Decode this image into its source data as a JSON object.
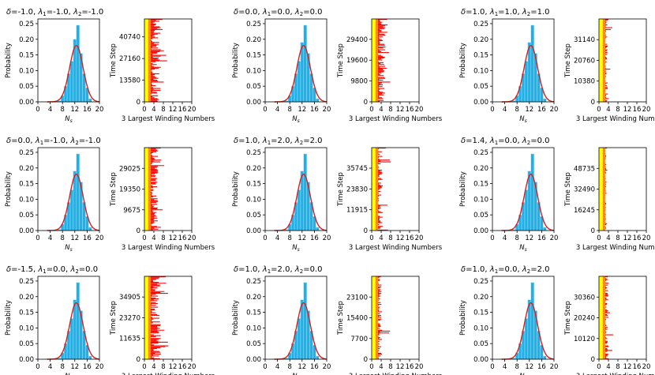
{
  "figure": {
    "hist_ylabel": "Probability",
    "hist_xlabel": "N_s",
    "hist_xticks": [
      0,
      4,
      8,
      12,
      16,
      20
    ],
    "hist_xlim": [
      0,
      20
    ],
    "hist_yticks": [
      0.0,
      0.05,
      0.1,
      0.15,
      0.2,
      0.25
    ],
    "hist_ylim": [
      0,
      0.265
    ],
    "wind_ylabel": "Time Step",
    "wind_xlabel": "3 Largest Winding Numbers",
    "wind_xticks": [
      0,
      4,
      8,
      12,
      16,
      20
    ],
    "wind_xlim": [
      0,
      20
    ],
    "colors": {
      "bars": "#1fb2ea",
      "bars_edge": "#9fdcf4",
      "curve": "#d62020",
      "yellow": "#ffff00",
      "orange": "#ff8c00",
      "red": "#ff0000"
    }
  },
  "chart_data": [
    {
      "type": "bar",
      "panel": "histogram",
      "title": "δ = -1.0, λ1 = -1.0, λ2 = -1.0",
      "title_parts": {
        "delta": "-1.0",
        "lambda1": "-1.0",
        "lambda2": "-1.0"
      },
      "x": [
        7,
        8,
        9,
        10,
        11,
        12,
        13,
        14,
        15,
        16,
        17
      ],
      "values": [
        0.003,
        0.02,
        0.05,
        0.09,
        0.13,
        0.2,
        0.245,
        0.155,
        0.09,
        0.045,
        0.01
      ],
      "fit_curve": {
        "mean": 12.5,
        "sigma": 2.2,
        "peak": 0.18
      },
      "xlabel": "N_s",
      "ylabel": "Probability",
      "winding": {
        "yticks": [
          0,
          13580,
          27160,
          40740
        ],
        "ymax": 52000,
        "max_reach": 12,
        "spread": "wide"
      }
    },
    {
      "type": "bar",
      "panel": "histogram",
      "title": "δ = 0.0, λ1 = 0.0, λ2 = 0.0",
      "title_parts": {
        "delta": "0.0",
        "lambda1": "0.0",
        "lambda2": "0.0"
      },
      "x": [
        7,
        8,
        9,
        10,
        11,
        12,
        13,
        14,
        15,
        16,
        17
      ],
      "values": [
        0.003,
        0.02,
        0.05,
        0.09,
        0.13,
        0.19,
        0.245,
        0.155,
        0.09,
        0.045,
        0.01
      ],
      "fit_curve": {
        "mean": 12.5,
        "sigma": 2.2,
        "peak": 0.18
      },
      "xlabel": "N_s",
      "ylabel": "Probability",
      "winding": {
        "yticks": [
          0,
          9800,
          19600,
          29400
        ],
        "ymax": 39000,
        "max_reach": 10,
        "spread": "wide"
      }
    },
    {
      "type": "bar",
      "panel": "histogram",
      "title": "δ = 1.0, λ1 = 1.0, λ2 = 1.0",
      "title_parts": {
        "delta": "1.0",
        "lambda1": "1.0",
        "lambda2": "1.0"
      },
      "x": [
        7,
        8,
        9,
        10,
        11,
        12,
        13,
        14,
        15,
        16,
        17
      ],
      "values": [
        0.003,
        0.02,
        0.05,
        0.09,
        0.13,
        0.19,
        0.245,
        0.155,
        0.09,
        0.045,
        0.01
      ],
      "fit_curve": {
        "mean": 12.5,
        "sigma": 2.2,
        "peak": 0.18
      },
      "xlabel": "N_s",
      "ylabel": "Probability",
      "winding": {
        "yticks": [
          0,
          10380,
          20760,
          31140
        ],
        "ymax": 41500,
        "max_reach": 6,
        "spread": "narrow"
      }
    },
    {
      "type": "bar",
      "panel": "histogram",
      "title": "δ = 0.0, λ1 = -1.0, λ2 = -1.0",
      "title_parts": {
        "delta": "0.0",
        "lambda1": "-1.0",
        "lambda2": "-1.0"
      },
      "x": [
        7,
        8,
        9,
        10,
        11,
        12,
        13,
        14,
        15,
        16,
        17
      ],
      "values": [
        0.003,
        0.02,
        0.05,
        0.09,
        0.13,
        0.19,
        0.245,
        0.155,
        0.09,
        0.045,
        0.01
      ],
      "fit_curve": {
        "mean": 12.5,
        "sigma": 2.2,
        "peak": 0.18
      },
      "xlabel": "N_s",
      "ylabel": "Probability",
      "winding": {
        "yticks": [
          0,
          9675,
          19350,
          29025
        ],
        "ymax": 38700,
        "max_reach": 10,
        "spread": "wide"
      }
    },
    {
      "type": "bar",
      "panel": "histogram",
      "title": "δ = 1.0, λ1 = 2.0, λ2 = 2.0",
      "title_parts": {
        "delta": "1.0",
        "lambda1": "2.0",
        "lambda2": "2.0"
      },
      "x": [
        7,
        8,
        9,
        10,
        11,
        12,
        13,
        14,
        15,
        16,
        17
      ],
      "values": [
        0.003,
        0.02,
        0.05,
        0.09,
        0.13,
        0.19,
        0.245,
        0.155,
        0.09,
        0.045,
        0.01
      ],
      "fit_curve": {
        "mean": 12.5,
        "sigma": 2.2,
        "peak": 0.18
      },
      "xlabel": "N_s",
      "ylabel": "Probability",
      "winding": {
        "yticks": [
          0,
          11915,
          23830,
          35745
        ],
        "ymax": 47500,
        "max_reach": 9,
        "spread": "narrow"
      }
    },
    {
      "type": "bar",
      "panel": "histogram",
      "title": "δ = 1.4, λ1 = 0.0, λ2 = 0.0",
      "title_parts": {
        "delta": "1.4",
        "lambda1": "0.0",
        "lambda2": "0.0"
      },
      "x": [
        7,
        8,
        9,
        10,
        11,
        12,
        13,
        14,
        15,
        16,
        17
      ],
      "values": [
        0.003,
        0.02,
        0.05,
        0.09,
        0.13,
        0.19,
        0.245,
        0.155,
        0.09,
        0.045,
        0.01
      ],
      "fit_curve": {
        "mean": 12.5,
        "sigma": 2.2,
        "peak": 0.18
      },
      "xlabel": "N_s",
      "ylabel": "Probability",
      "winding": {
        "yticks": [
          0,
          16245,
          32490,
          48735
        ],
        "ymax": 65000,
        "max_reach": 4,
        "spread": "narrow"
      }
    },
    {
      "type": "bar",
      "panel": "histogram",
      "title": "δ = -1.5, λ1 = 0.0, λ2 = 0.0",
      "title_parts": {
        "delta": "-1.5",
        "lambda1": "0.0",
        "lambda2": "0.0"
      },
      "x": [
        7,
        8,
        9,
        10,
        11,
        12,
        13,
        14,
        15,
        16,
        17
      ],
      "values": [
        0.003,
        0.02,
        0.05,
        0.09,
        0.13,
        0.19,
        0.245,
        0.155,
        0.09,
        0.045,
        0.01
      ],
      "fit_curve": {
        "mean": 12.5,
        "sigma": 2.2,
        "peak": 0.18
      },
      "xlabel": "N_s",
      "ylabel": "Probability",
      "winding": {
        "yticks": [
          0,
          11635,
          23270,
          34905
        ],
        "ymax": 46500,
        "max_reach": 12,
        "spread": "wide"
      }
    },
    {
      "type": "bar",
      "panel": "histogram",
      "title": "δ = 1.0, λ1 = 2.0, λ2 = 0.0",
      "title_parts": {
        "delta": "1.0",
        "lambda1": "2.0",
        "lambda2": "0.0"
      },
      "x": [
        7,
        8,
        9,
        10,
        11,
        12,
        13,
        14,
        15,
        16,
        17
      ],
      "values": [
        0.003,
        0.02,
        0.05,
        0.09,
        0.13,
        0.19,
        0.245,
        0.155,
        0.09,
        0.045,
        0.01
      ],
      "fit_curve": {
        "mean": 12.5,
        "sigma": 2.2,
        "peak": 0.18
      },
      "xlabel": "N_s",
      "ylabel": "Probability",
      "winding": {
        "yticks": [
          0,
          7700,
          15400,
          23100
        ],
        "ymax": 30800,
        "max_reach": 8,
        "spread": "narrow"
      }
    },
    {
      "type": "bar",
      "panel": "histogram",
      "title": "δ = 1.0, λ1 = 0.0, λ2 = 2.0",
      "title_parts": {
        "delta": "1.0",
        "lambda1": "0.0",
        "lambda2": "2.0"
      },
      "x": [
        7,
        8,
        9,
        10,
        11,
        12,
        13,
        14,
        15,
        16,
        17
      ],
      "values": [
        0.003,
        0.02,
        0.05,
        0.09,
        0.13,
        0.19,
        0.245,
        0.155,
        0.09,
        0.045,
        0.01
      ],
      "fit_curve": {
        "mean": 12.5,
        "sigma": 2.2,
        "peak": 0.18
      },
      "xlabel": "N_s",
      "ylabel": "Probability",
      "winding": {
        "yticks": [
          0,
          10120,
          20240,
          30360
        ],
        "ymax": 40500,
        "max_reach": 7,
        "spread": "narrow"
      }
    }
  ]
}
